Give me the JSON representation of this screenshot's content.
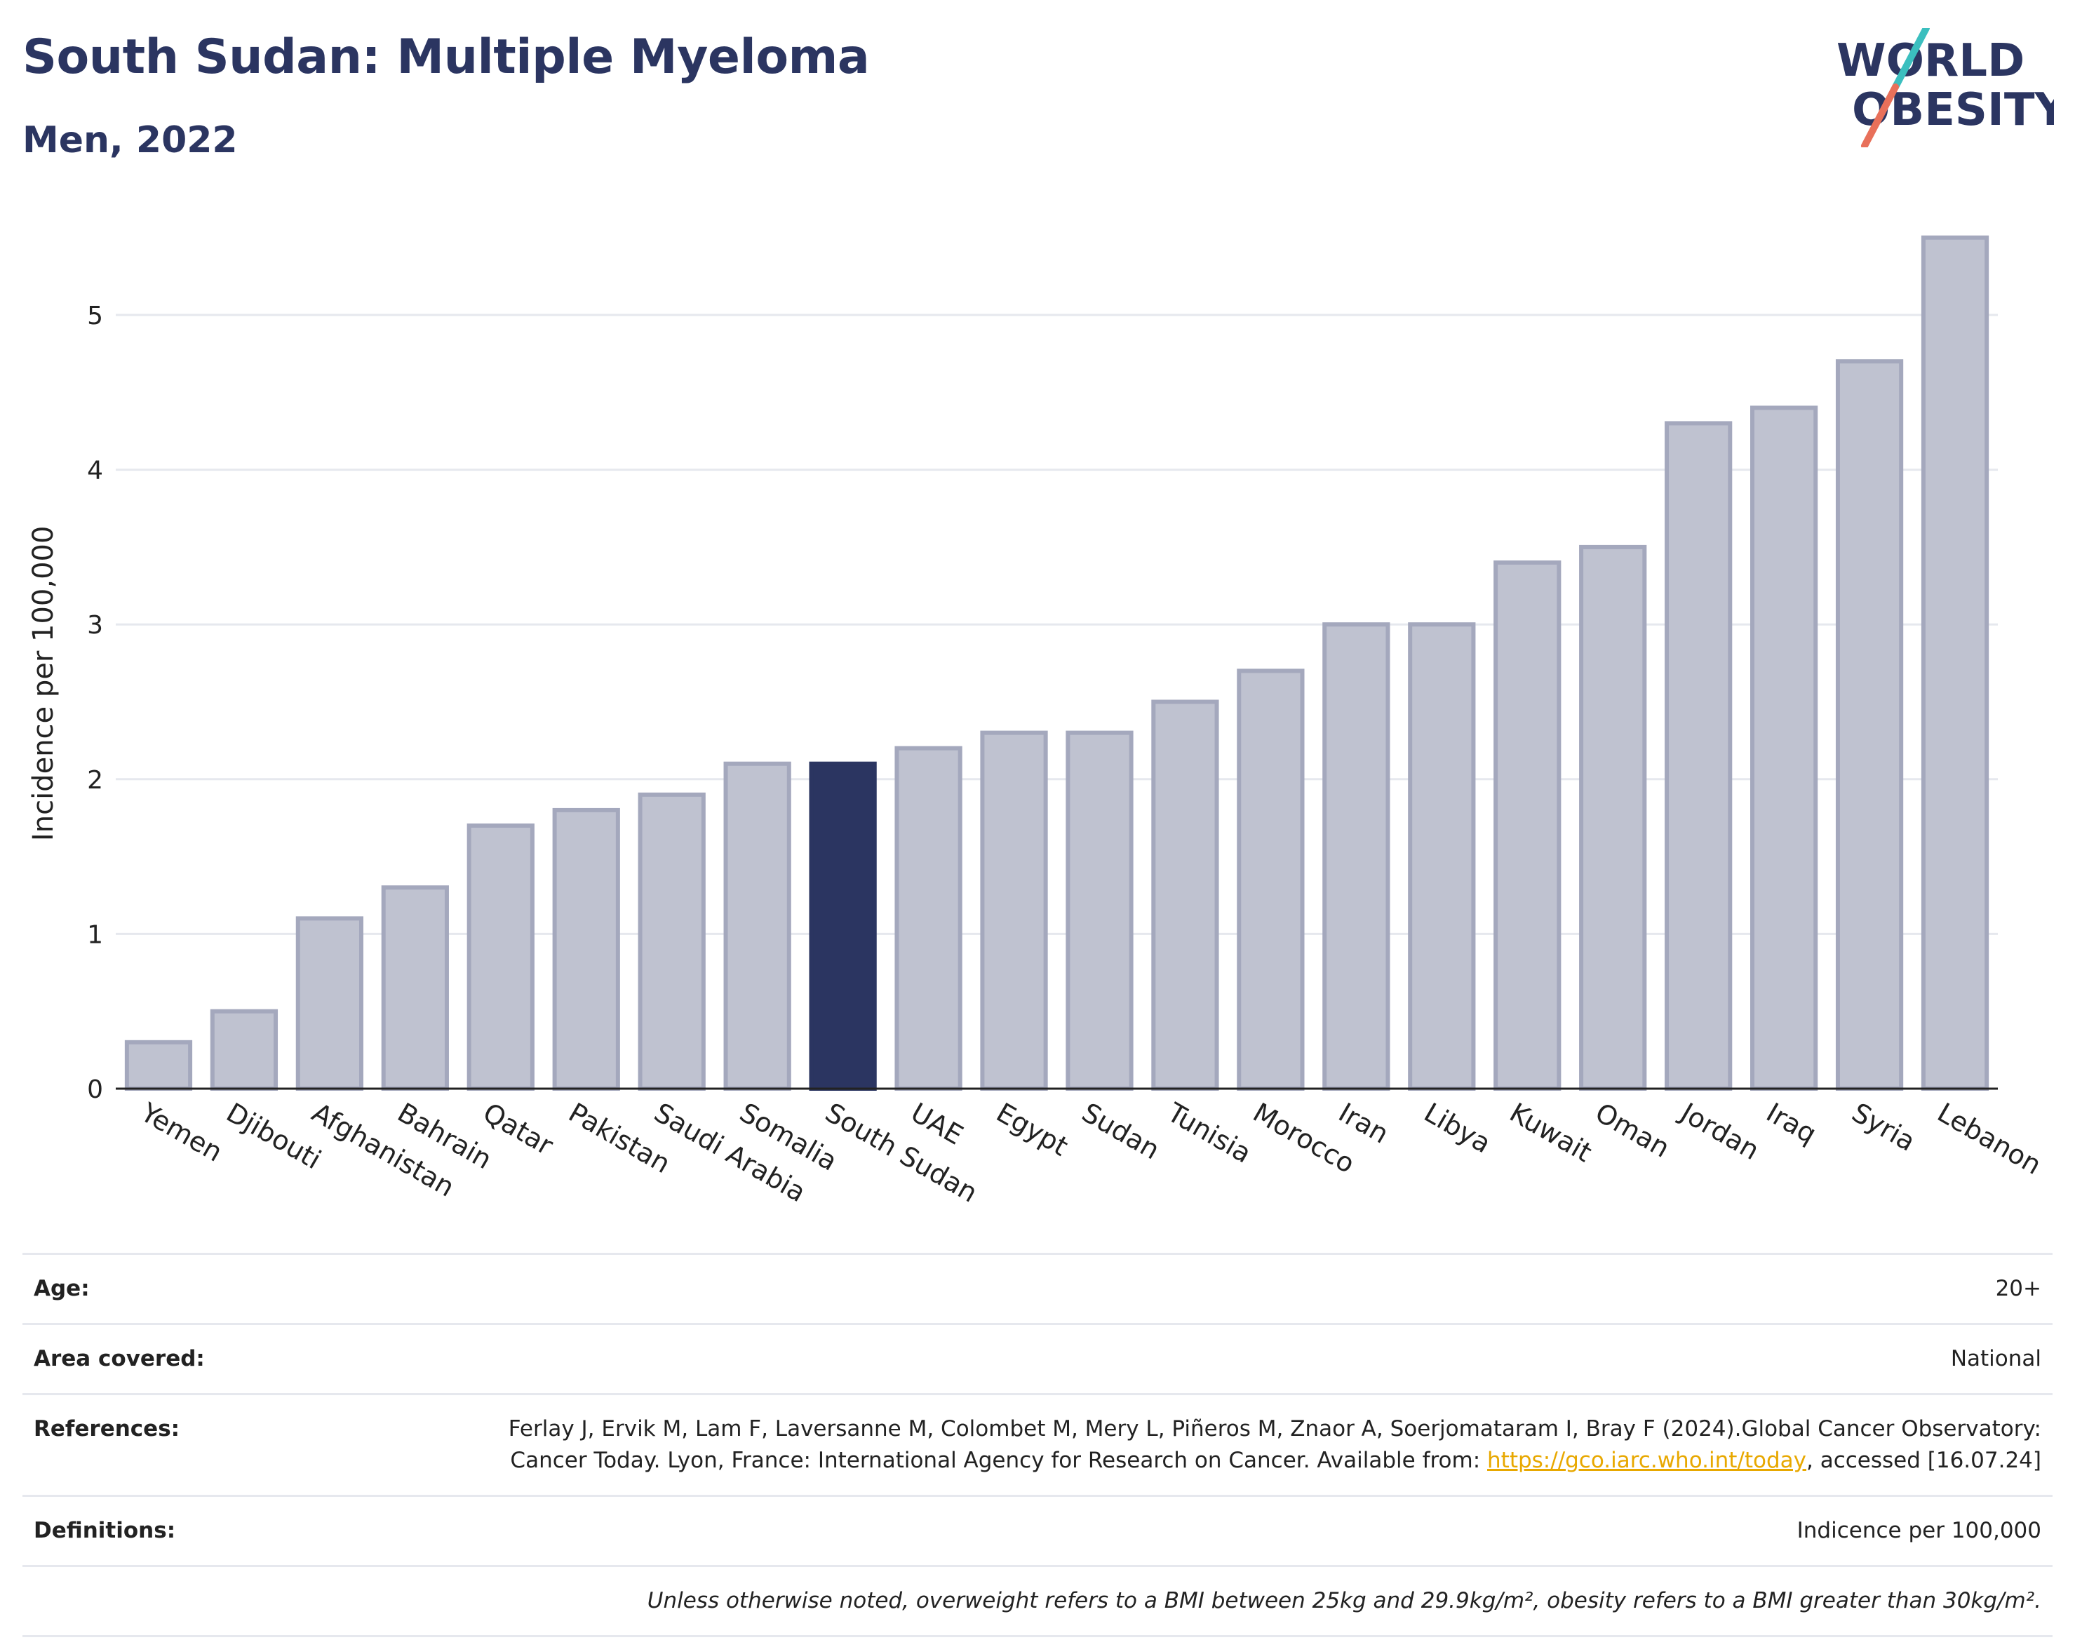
{
  "header": {
    "title": "South Sudan: Multiple Myeloma",
    "subtitle": "Men, 2022"
  },
  "logo": {
    "line1": "WORLD",
    "line2": "OBESITY",
    "color_text": "#2b3561",
    "color_slash_top": "#3bbfbf",
    "color_slash_bottom": "#e8705a"
  },
  "chart_data": {
    "type": "bar",
    "categories": [
      "Yemen",
      "Djibouti",
      "Afghanistan",
      "Bahrain",
      "Qatar",
      "Pakistan",
      "Saudi Arabia",
      "Somalia",
      "South Sudan",
      "UAE",
      "Egypt",
      "Sudan",
      "Tunisia",
      "Morocco",
      "Iran",
      "Libya",
      "Kuwait",
      "Oman",
      "Jordan",
      "Iraq",
      "Syria",
      "Lebanon"
    ],
    "values": [
      0.3,
      0.5,
      1.1,
      1.3,
      1.7,
      1.8,
      1.9,
      2.1,
      2.1,
      2.2,
      2.3,
      2.3,
      2.5,
      2.7,
      3.0,
      3.0,
      3.4,
      3.5,
      4.3,
      4.4,
      4.7,
      5.5
    ],
    "highlight": "South Sudan",
    "ylabel": "Incidence per 100,000",
    "ylim": [
      0,
      5.6
    ],
    "yticks": [
      0,
      1,
      2,
      3,
      4,
      5
    ],
    "grid": true,
    "colors": {
      "bar": "#bfc2d0",
      "bar_border": "#a4a8bd",
      "highlight": "#2b3561",
      "grid": "#e6e8ee",
      "axis": "#222222"
    }
  },
  "info": {
    "age": {
      "label": "Age:",
      "value": "20+"
    },
    "area": {
      "label": "Area covered:",
      "value": "National"
    },
    "references": {
      "label": "References:",
      "text_before": "Ferlay J, Ervik M, Lam F, Laversanne M, Colombet M, Mery L, Piñeros M, Znaor A, Soerjomataram I, Bray F (2024).Global Cancer Observatory: Cancer Today. Lyon, France: International Agency for Research on Cancer. Available from: ",
      "link": "https://gco.iarc.who.int/today",
      "text_after": ", accessed [16.07.24]"
    },
    "definitions": {
      "label": "Definitions:",
      "value": "Indicence per 100,000"
    },
    "note": "Unless otherwise noted, overweight refers to a BMI between 25kg and 29.9kg/m², obesity refers to a BMI greater than 30kg/m²."
  }
}
